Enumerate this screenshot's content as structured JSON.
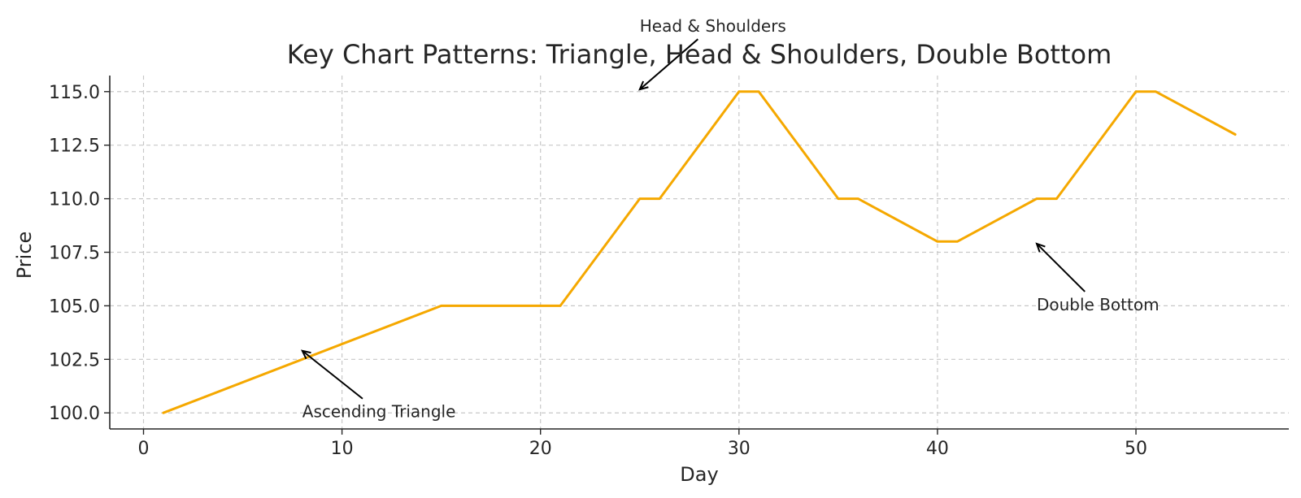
{
  "chart_data": {
    "type": "line",
    "title": "Key Chart Patterns: Triangle, Head & Shoulders, Double Bottom",
    "xlabel": "Day",
    "ylabel": "Price",
    "xlim": [
      -1.7,
      57.7
    ],
    "ylim": [
      99.25,
      115.75
    ],
    "xticks": [
      0,
      10,
      20,
      30,
      40,
      50
    ],
    "xtick_labels": [
      "0",
      "10",
      "20",
      "30",
      "40",
      "50"
    ],
    "yticks": [
      100.0,
      102.5,
      105.0,
      107.5,
      110.0,
      112.5,
      115.0
    ],
    "ytick_labels": [
      "100.0",
      "102.5",
      "105.0",
      "107.5",
      "110.0",
      "112.5",
      "115.0"
    ],
    "grid": true,
    "legend": false,
    "series": [
      {
        "color": "#f5a800",
        "points": [
          [
            1,
            100
          ],
          [
            15,
            105
          ],
          [
            21,
            105
          ],
          [
            25,
            110
          ],
          [
            26,
            110
          ],
          [
            30,
            115
          ],
          [
            31,
            115
          ],
          [
            35,
            110
          ],
          [
            36,
            110
          ],
          [
            40,
            108
          ],
          [
            41,
            108
          ],
          [
            45,
            110
          ],
          [
            46,
            110
          ],
          [
            50,
            115
          ],
          [
            51,
            115
          ],
          [
            55,
            113
          ]
        ]
      }
    ],
    "annotations": [
      {
        "text": "Ascending Triangle",
        "xy": [
          8,
          102.9
        ],
        "xytext": [
          8,
          100
        ]
      },
      {
        "text": "Head & Shoulders",
        "xy": [
          25,
          115.1
        ],
        "xytext": [
          25,
          118
        ]
      },
      {
        "text": "Double Bottom",
        "xy": [
          45,
          107.9
        ],
        "xytext": [
          45,
          105
        ]
      }
    ]
  }
}
